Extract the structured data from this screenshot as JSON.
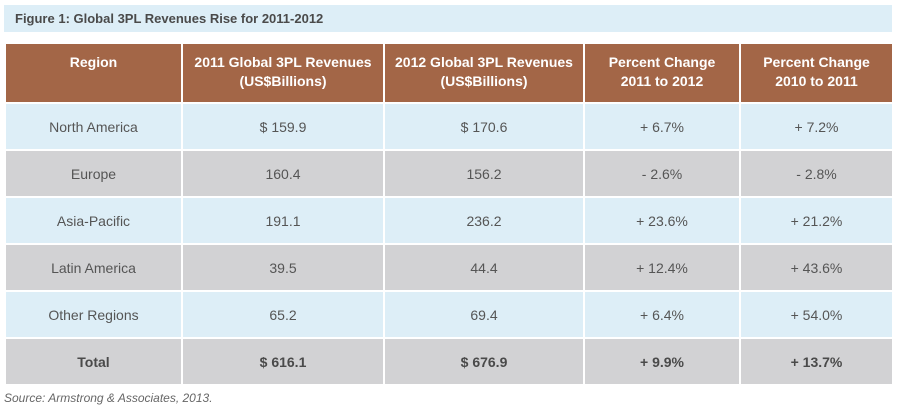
{
  "title": "Figure 1: Global 3PL Revenues Rise for 2011-2012",
  "headers": [
    "Region",
    "2011 Global 3PL Revenues\n(US$Billions)",
    "2012 Global 3PL Revenues\n(US$Billions)",
    "Percent Change\n2011 to 2012",
    "Percent Change\n2010 to 2011"
  ],
  "rows": [
    [
      "North America",
      "$ 159.9",
      "$ 170.6",
      "+ 6.7%",
      "+ 7.2%"
    ],
    [
      "Europe",
      "160.4",
      "156.2",
      "- 2.6%",
      "- 2.8%"
    ],
    [
      "Asia-Pacific",
      "191.1",
      "236.2",
      "+ 23.6%",
      "+ 21.2%"
    ],
    [
      "Latin America",
      "39.5",
      "44.4",
      "+ 12.4%",
      "+ 43.6%"
    ],
    [
      "Other Regions",
      "65.2",
      "69.4",
      "+ 6.4%",
      "+ 54.0%"
    ]
  ],
  "total": [
    "Total",
    "$ 616.1",
    "$ 676.9",
    "+ 9.9%",
    "+ 13.7%"
  ],
  "source": "Source: Armstrong & Associates, 2013."
}
